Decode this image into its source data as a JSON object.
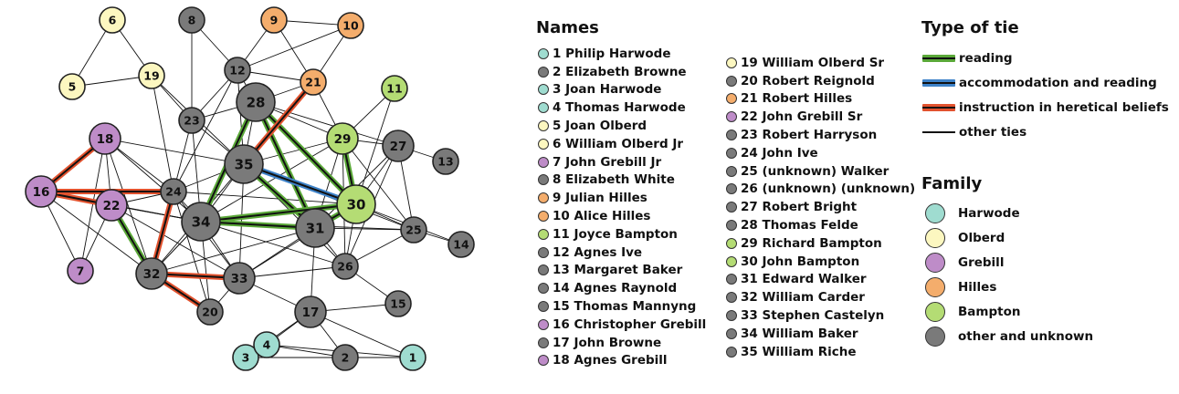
{
  "colors": {
    "harwode": "#9fdcd0",
    "olberd": "#fcf7c0",
    "grebill": "#be8cc8",
    "hilles": "#f4ad6c",
    "bampton": "#b4dc74",
    "other": "#7a7a7a",
    "reading": "#5aa838",
    "accommodation": "#3d82c8",
    "instruction": "#e2522e"
  },
  "names_heading": "Names",
  "names": [
    {
      "label": "1 Philip Harwode",
      "family": "harwode"
    },
    {
      "label": "2 Elizabeth Browne",
      "family": "other"
    },
    {
      "label": "3 Joan Harwode",
      "family": "harwode"
    },
    {
      "label": "4 Thomas Harwode",
      "family": "harwode"
    },
    {
      "label": "5 Joan Olberd",
      "family": "olberd"
    },
    {
      "label": "6 William Olberd Jr",
      "family": "olberd"
    },
    {
      "label": "7 John Grebill Jr",
      "family": "grebill"
    },
    {
      "label": "8 Elizabeth White",
      "family": "other"
    },
    {
      "label": "9 Julian Hilles",
      "family": "hilles"
    },
    {
      "label": "10 Alice Hilles",
      "family": "hilles"
    },
    {
      "label": "11 Joyce Bampton",
      "family": "bampton"
    },
    {
      "label": "12 Agnes Ive",
      "family": "other"
    },
    {
      "label": "13 Margaret Baker",
      "family": "other"
    },
    {
      "label": "14 Agnes Raynold",
      "family": "other"
    },
    {
      "label": "15 Thomas Mannyng",
      "family": "other"
    },
    {
      "label": "16 Christopher Grebill",
      "family": "grebill"
    },
    {
      "label": "17 John Browne",
      "family": "other"
    },
    {
      "label": "18 Agnes Grebill",
      "family": "grebill"
    },
    {
      "label": "19 William Olberd Sr",
      "family": "olberd"
    },
    {
      "label": "20 Robert Reignold",
      "family": "other"
    },
    {
      "label": "21 Robert Hilles",
      "family": "hilles"
    },
    {
      "label": "22 John Grebill Sr",
      "family": "grebill"
    },
    {
      "label": "23 Robert Harryson",
      "family": "other"
    },
    {
      "label": "24 John Ive",
      "family": "other"
    },
    {
      "label": "25 (unknown) Walker",
      "family": "other"
    },
    {
      "label": "26 (unknown) (unknown)",
      "family": "other"
    },
    {
      "label": "27 Robert Bright",
      "family": "other"
    },
    {
      "label": "28 Thomas Felde",
      "family": "other"
    },
    {
      "label": "29 Richard Bampton",
      "family": "bampton"
    },
    {
      "label": "30 John Bampton",
      "family": "bampton"
    },
    {
      "label": "31 Edward Walker",
      "family": "other"
    },
    {
      "label": "32 William Carder",
      "family": "other"
    },
    {
      "label": "33 Stephen Castelyn",
      "family": "other"
    },
    {
      "label": "34 William Baker",
      "family": "other"
    },
    {
      "label": "35 William Riche",
      "family": "other"
    }
  ],
  "tie_heading": "Type of tie",
  "tie_types": [
    {
      "label": "reading",
      "type": "reading"
    },
    {
      "label": "accommodation and reading",
      "type": "accommodation"
    },
    {
      "label": "instruction in heretical beliefs",
      "type": "instruction"
    },
    {
      "label": "other ties",
      "type": "other"
    }
  ],
  "family_heading": "Family",
  "families": [
    {
      "label": "Harwode",
      "family": "harwode"
    },
    {
      "label": "Olberd",
      "family": "olberd"
    },
    {
      "label": "Grebill",
      "family": "grebill"
    },
    {
      "label": "Hilles",
      "family": "hilles"
    },
    {
      "label": "Bampton",
      "family": "bampton"
    },
    {
      "label": "other and unknown",
      "family": "other"
    }
  ],
  "nodes": [
    {
      "id": "1",
      "family": "harwode",
      "degree": "low"
    },
    {
      "id": "2",
      "family": "other",
      "degree": "low"
    },
    {
      "id": "3",
      "family": "harwode",
      "degree": "low"
    },
    {
      "id": "4",
      "family": "harwode",
      "degree": "low"
    },
    {
      "id": "5",
      "family": "olberd",
      "degree": "low"
    },
    {
      "id": "6",
      "family": "olberd",
      "degree": "low"
    },
    {
      "id": "7",
      "family": "grebill",
      "degree": "low"
    },
    {
      "id": "8",
      "family": "other",
      "degree": "low"
    },
    {
      "id": "9",
      "family": "hilles",
      "degree": "low"
    },
    {
      "id": "10",
      "family": "hilles",
      "degree": "low"
    },
    {
      "id": "11",
      "family": "bampton",
      "degree": "low"
    },
    {
      "id": "12",
      "family": "other",
      "degree": "low"
    },
    {
      "id": "13",
      "family": "other",
      "degree": "low"
    },
    {
      "id": "14",
      "family": "other",
      "degree": "low"
    },
    {
      "id": "15",
      "family": "other",
      "degree": "low"
    },
    {
      "id": "16",
      "family": "grebill",
      "degree": "mid"
    },
    {
      "id": "17",
      "family": "other",
      "degree": "mid"
    },
    {
      "id": "18",
      "family": "grebill",
      "degree": "mid"
    },
    {
      "id": "19",
      "family": "olberd",
      "degree": "low"
    },
    {
      "id": "20",
      "family": "other",
      "degree": "low"
    },
    {
      "id": "21",
      "family": "hilles",
      "degree": "low"
    },
    {
      "id": "22",
      "family": "grebill",
      "degree": "mid"
    },
    {
      "id": "23",
      "family": "other",
      "degree": "low"
    },
    {
      "id": "24",
      "family": "other",
      "degree": "low"
    },
    {
      "id": "25",
      "family": "other",
      "degree": "low"
    },
    {
      "id": "26",
      "family": "other",
      "degree": "low"
    },
    {
      "id": "27",
      "family": "other",
      "degree": "mid"
    },
    {
      "id": "28",
      "family": "other",
      "degree": "high"
    },
    {
      "id": "29",
      "family": "bampton",
      "degree": "mid"
    },
    {
      "id": "30",
      "family": "bampton",
      "degree": "high"
    },
    {
      "id": "31",
      "family": "other",
      "degree": "high"
    },
    {
      "id": "32",
      "family": "other",
      "degree": "mid"
    },
    {
      "id": "33",
      "family": "other",
      "degree": "mid"
    },
    {
      "id": "34",
      "family": "other",
      "degree": "high"
    },
    {
      "id": "35",
      "family": "other",
      "degree": "high"
    }
  ],
  "edges": [
    [
      "5",
      "6",
      "other"
    ],
    [
      "5",
      "19",
      "other"
    ],
    [
      "6",
      "19",
      "other"
    ],
    [
      "19",
      "23",
      "other"
    ],
    [
      "19",
      "24",
      "other"
    ],
    [
      "19",
      "35",
      "other"
    ],
    [
      "8",
      "12",
      "other"
    ],
    [
      "8",
      "23",
      "other"
    ],
    [
      "9",
      "12",
      "other"
    ],
    [
      "9",
      "21",
      "other"
    ],
    [
      "10",
      "12",
      "other"
    ],
    [
      "10",
      "21",
      "other"
    ],
    [
      "12",
      "23",
      "other"
    ],
    [
      "12",
      "28",
      "other"
    ],
    [
      "12",
      "21",
      "other"
    ],
    [
      "12",
      "35",
      "other"
    ],
    [
      "12",
      "24",
      "other"
    ],
    [
      "9",
      "10",
      "other"
    ],
    [
      "23",
      "24",
      "other"
    ],
    [
      "23",
      "35",
      "other"
    ],
    [
      "23",
      "34",
      "other"
    ],
    [
      "23",
      "28",
      "other"
    ],
    [
      "21",
      "28",
      "other"
    ],
    [
      "21",
      "29",
      "other"
    ],
    [
      "21",
      "35",
      "instruction"
    ],
    [
      "11",
      "29",
      "other"
    ],
    [
      "11",
      "30",
      "other"
    ],
    [
      "28",
      "35",
      "other"
    ],
    [
      "28",
      "34",
      "reading"
    ],
    [
      "28",
      "31",
      "reading"
    ],
    [
      "28",
      "30",
      "reading"
    ],
    [
      "28",
      "29",
      "other"
    ],
    [
      "28",
      "27",
      "other"
    ],
    [
      "29",
      "27",
      "other"
    ],
    [
      "29",
      "30",
      "reading"
    ],
    [
      "29",
      "35",
      "other"
    ],
    [
      "29",
      "34",
      "other"
    ],
    [
      "29",
      "31",
      "other"
    ],
    [
      "29",
      "26",
      "other"
    ],
    [
      "29",
      "25",
      "other"
    ],
    [
      "27",
      "30",
      "other"
    ],
    [
      "27",
      "13",
      "other"
    ],
    [
      "27",
      "25",
      "other"
    ],
    [
      "27",
      "26",
      "other"
    ],
    [
      "27",
      "31",
      "other"
    ],
    [
      "35",
      "34",
      "other"
    ],
    [
      "35",
      "31",
      "reading"
    ],
    [
      "35",
      "30",
      "accommodation"
    ],
    [
      "35",
      "24",
      "other"
    ],
    [
      "35",
      "32",
      "other"
    ],
    [
      "35",
      "33",
      "other"
    ],
    [
      "35",
      "26",
      "other"
    ],
    [
      "35",
      "25",
      "other"
    ],
    [
      "34",
      "30",
      "reading"
    ],
    [
      "34",
      "31",
      "reading"
    ],
    [
      "34",
      "25",
      "other"
    ],
    [
      "34",
      "26",
      "other"
    ],
    [
      "34",
      "33",
      "other"
    ],
    [
      "34",
      "32",
      "other"
    ],
    [
      "34",
      "24",
      "other"
    ],
    [
      "34",
      "20",
      "other"
    ],
    [
      "34",
      "18",
      "other"
    ],
    [
      "34",
      "22",
      "other"
    ],
    [
      "30",
      "31",
      "reading"
    ],
    [
      "30",
      "25",
      "other"
    ],
    [
      "30",
      "26",
      "other"
    ],
    [
      "30",
      "33",
      "other"
    ],
    [
      "30",
      "14",
      "other"
    ],
    [
      "30",
      "24",
      "other"
    ],
    [
      "31",
      "25",
      "other"
    ],
    [
      "31",
      "26",
      "other"
    ],
    [
      "31",
      "33",
      "other"
    ],
    [
      "31",
      "17",
      "other"
    ],
    [
      "31",
      "32",
      "other"
    ],
    [
      "25",
      "14",
      "other"
    ],
    [
      "25",
      "26",
      "other"
    ],
    [
      "26",
      "33",
      "other"
    ],
    [
      "26",
      "15",
      "other"
    ],
    [
      "16",
      "18",
      "instruction"
    ],
    [
      "16",
      "22",
      "instruction"
    ],
    [
      "16",
      "24",
      "instruction"
    ],
    [
      "16",
      "7",
      "other"
    ],
    [
      "16",
      "32",
      "other"
    ],
    [
      "16",
      "34",
      "other"
    ],
    [
      "18",
      "22",
      "other"
    ],
    [
      "18",
      "7",
      "other"
    ],
    [
      "18",
      "24",
      "other"
    ],
    [
      "18",
      "32",
      "other"
    ],
    [
      "18",
      "35",
      "other"
    ],
    [
      "22",
      "24",
      "other"
    ],
    [
      "22",
      "7",
      "other"
    ],
    [
      "22",
      "32",
      "reading"
    ],
    [
      "22",
      "34",
      "other"
    ],
    [
      "22",
      "33",
      "other"
    ],
    [
      "24",
      "32",
      "instruction"
    ],
    [
      "24",
      "20",
      "other"
    ],
    [
      "24",
      "33",
      "other"
    ],
    [
      "32",
      "33",
      "instruction"
    ],
    [
      "32",
      "20",
      "instruction"
    ],
    [
      "32",
      "34",
      "other"
    ],
    [
      "33",
      "20",
      "other"
    ],
    [
      "33",
      "17",
      "other"
    ],
    [
      "17",
      "4",
      "other"
    ],
    [
      "17",
      "2",
      "other"
    ],
    [
      "17",
      "1",
      "other"
    ],
    [
      "17",
      "3",
      "other"
    ],
    [
      "17",
      "15",
      "other"
    ],
    [
      "4",
      "3",
      "other"
    ],
    [
      "4",
      "2",
      "other"
    ],
    [
      "3",
      "2",
      "other"
    ],
    [
      "2",
      "1",
      "other"
    ],
    [
      "4",
      "1",
      "other"
    ]
  ]
}
